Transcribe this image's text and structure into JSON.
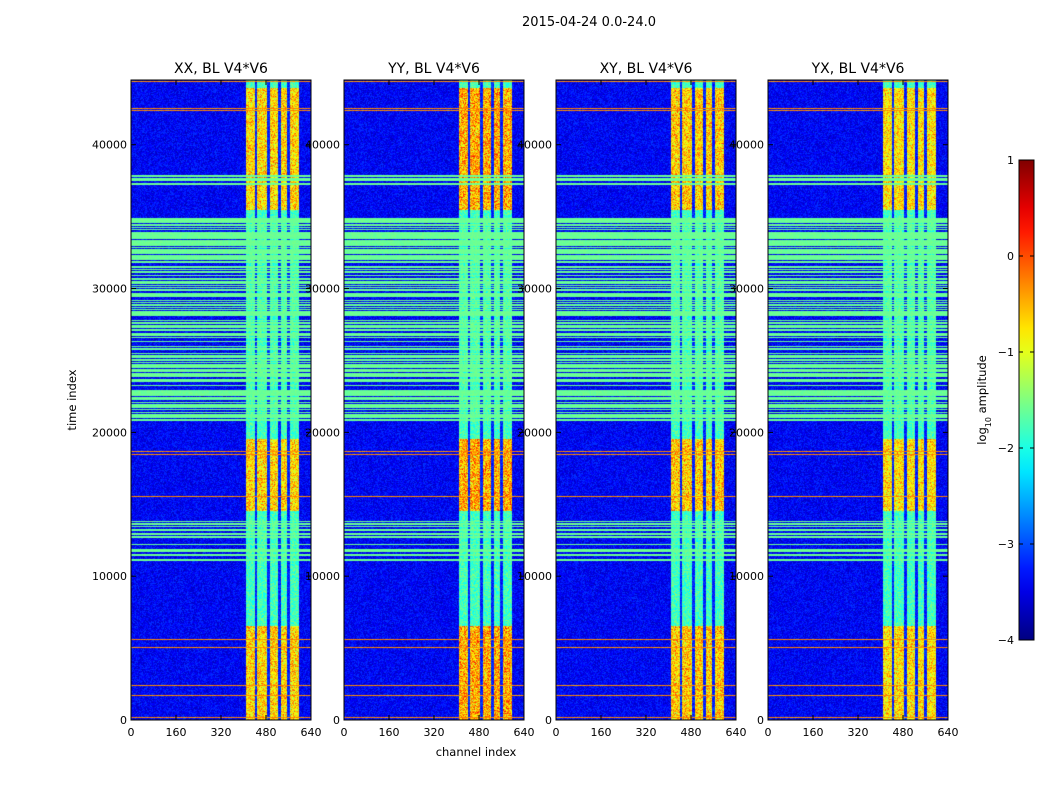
{
  "chart_data": {
    "type": "heatmap",
    "suptitle": "2015-04-24 0.0-24.0",
    "xlabel": "channel index",
    "ylabel": "time index",
    "xlim": [
      0,
      640
    ],
    "ylim": [
      0,
      44500
    ],
    "xticks": [
      0,
      160,
      320,
      480,
      640
    ],
    "yticks": [
      0,
      10000,
      20000,
      30000,
      40000
    ],
    "panels": [
      {
        "title": "XX, BL V4*V6",
        "band_start": 410,
        "strength": 1.05
      },
      {
        "title": "YY, BL V4*V6",
        "band_start": 410,
        "strength": 1.25
      },
      {
        "title": "XY, BL V4*V6",
        "band_start": 410,
        "strength": 1.1
      },
      {
        "title": "YX, BL V4*V6",
        "band_start": 410,
        "strength": 1.0
      }
    ],
    "colorbar": {
      "label": "log$_{10}$ amplitude",
      "label_main": "log",
      "label_sub": "10",
      "label_rest": " amplitude",
      "range": [
        -4,
        1
      ],
      "ticks": [
        1,
        0,
        -1,
        -2,
        -3,
        -4
      ],
      "tick_labels": [
        "1",
        "0",
        "−1",
        "−2",
        "−3",
        "−4"
      ],
      "colormap": "jet"
    },
    "features": {
      "band_channels": [
        410,
        600
      ],
      "band_gap_channels": [
        445,
        490,
        530,
        560
      ],
      "flag_time_ranges": [
        [
          11000,
          13800
        ],
        [
          20800,
          35000
        ],
        [
          37200,
          38000
        ]
      ],
      "flagged_value": -1.6,
      "background_value": -3.4,
      "band_value": -1.8,
      "strong_time_ranges": [
        [
          0,
          6500
        ],
        [
          14500,
          19500
        ],
        [
          35500,
          44000
        ]
      ]
    }
  }
}
